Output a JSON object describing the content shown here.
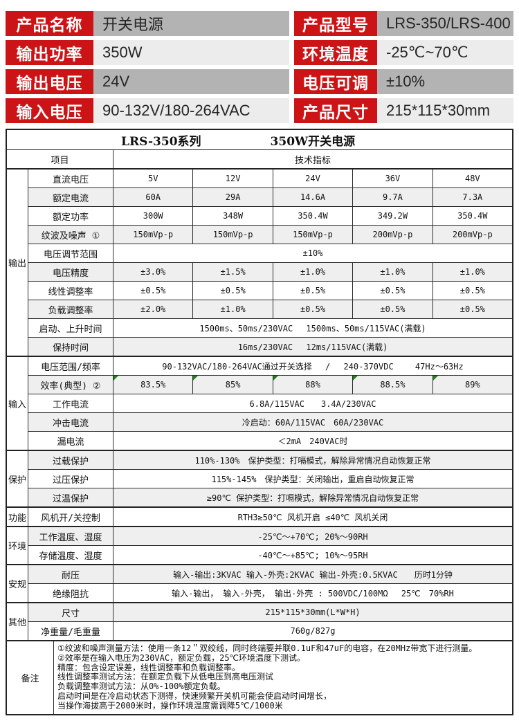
{
  "colors": {
    "accent_red": "#cc1417",
    "value_bg_dark": "#b3b3b3",
    "value_bg_light": "#ececec",
    "row_shade": "#efefef",
    "note_flag_green": "#1e7d1e"
  },
  "top": {
    "rows": [
      {
        "left_label": "产品名称",
        "left_value": "开关电源",
        "right_label": "产品型号",
        "right_value": "LRS-350/LRS-400"
      },
      {
        "left_label": "输出功率",
        "left_value": "350W",
        "right_label": "环境温度",
        "right_value": "-25℃~70℃"
      },
      {
        "left_label": "输出电压",
        "left_value": "24V",
        "right_label": "电压可调",
        "right_value": "±10%"
      },
      {
        "left_label": "输入电压",
        "left_value": "90-132V/180-264VAC",
        "right_label": "产品尺寸",
        "right_value": "215*115*30mm"
      }
    ]
  },
  "spec": {
    "title_left": "LRS-350系列",
    "title_right": "350W开关电源",
    "header_item": "项目",
    "header_spec": "技术指标",
    "groups": [
      {
        "category": "输出",
        "rows": [
          {
            "label": "直流电压",
            "cells": [
              "5V",
              "12V",
              "24V",
              "36V",
              "48V"
            ]
          },
          {
            "label": "额定电流",
            "cells": [
              "60A",
              "29A",
              "14.6A",
              "9.7A",
              "7.3A"
            ]
          },
          {
            "label": "额定功率",
            "cells": [
              "300W",
              "348W",
              "350.4W",
              "349.2W",
              "350.4W"
            ]
          },
          {
            "label": "纹波及噪声 ①",
            "cells": [
              "150mVp-p",
              "150mVp-p",
              "150mVp-p",
              "200mVp-p",
              "200mVp-p"
            ]
          },
          {
            "label": "电压调节范围",
            "span": "±10%"
          },
          {
            "label": "电压精度",
            "cells": [
              "±3.0%",
              "±1.5%",
              "±1.0%",
              "±1.0%",
              "±1.0%"
            ]
          },
          {
            "label": "线性调整率",
            "cells": [
              "±0.5%",
              "±0.5%",
              "±0.5%",
              "±0.5%",
              "±0.5%"
            ]
          },
          {
            "label": "负载调整率",
            "cells": [
              "±2.0%",
              "±1.0%",
              "±0.5%",
              "±0.5%",
              "±0.5%"
            ]
          },
          {
            "label": "启动、上升时间",
            "span": "1500ms、50ms/230VAC　 1500ms、50ms/115VAC(满载)"
          },
          {
            "label": "保持时间",
            "span": "16ms/230VAC　 12ms/115VAC(满载)"
          }
        ]
      },
      {
        "category": "输入",
        "rows": [
          {
            "label": "电压范围/频率",
            "span": "90-132VAC/180-264VAC通过开关选择　 /　 240-370VDC　　 47Hz～63Hz"
          },
          {
            "label": "效率(典型) ②",
            "cells": [
              "83.5%",
              "85%",
              "88%",
              "88.5%",
              "89%"
            ]
          },
          {
            "label": "工作电流",
            "span": "6.8A/115VAC　　3.4A/230VAC"
          },
          {
            "label": "冲击电流",
            "span": "冷启动：60A/115VAC　60A/230VAC"
          },
          {
            "label": "漏电流",
            "span": "＜2mA　240VAC时"
          }
        ]
      },
      {
        "category": "保护",
        "rows": [
          {
            "label": "过载保护",
            "span": "110%-130%　保护类型：打嗝模式，解除异常情况自动恢复正常"
          },
          {
            "label": "过压保护",
            "span": "115%-145%　保护类型：关闭输出，重启自动恢复正常"
          },
          {
            "label": "过温保护",
            "span": "≥90℃ 保护类型：打嗝模式，解除异常情况自动恢复正常"
          }
        ]
      },
      {
        "category": "功能",
        "rows": [
          {
            "label": "风机开/关控制",
            "span": "RTH3≥50℃ 风机开启 ≤40℃ 风机关闭"
          }
        ]
      },
      {
        "category": "环境",
        "rows": [
          {
            "label": "工作温度、湿度",
            "span": "-25℃～+70℃; 20%～90RH"
          },
          {
            "label": "存储温度、湿度",
            "span": "-40℃～+85℃; 10%～95RH"
          }
        ]
      },
      {
        "category": "安规",
        "rows": [
          {
            "label": "耐压",
            "span": "输入-输出:3KVAC 输入-外壳:2KVAC 输出-外壳:0.5KVAC　　历时1分钟"
          },
          {
            "label": "绝缘阻抗",
            "span": "输入-输出， 输入-外壳， 输出-外壳 : 500VDC/100MΩ　 25℃　70%RH"
          }
        ]
      },
      {
        "category": "其他",
        "rows": [
          {
            "label": "尺寸",
            "span": "215*115*30mm(L*W*H)"
          },
          {
            "label": "净重量/毛重量",
            "span": "760g/827g"
          }
        ]
      },
      {
        "category": "备注",
        "notes": [
          "①纹波和噪声测量方法：使用一条12＂双绞线，同时终端要并联0.1uF和47uF的电容，在20MHz带宽下进行测量。",
          "②效率是在输入电压为230VAC，额定负载，25℃环境温度下测试。",
          "精度：包含设定误差，线性调整率和负载调整率。",
          "线性调整率测试方法：在额定负载下从低电压到高电压测试",
          "负载调整率测试方法：从0%-100%额定负载。",
          "启动时间是在冷启动状态下测得，快速频繁开关机可能会使启动时间增长，",
          "当操作海拔高于2000米时，操作环境温度需调降5℃/1000米"
        ]
      }
    ]
  }
}
